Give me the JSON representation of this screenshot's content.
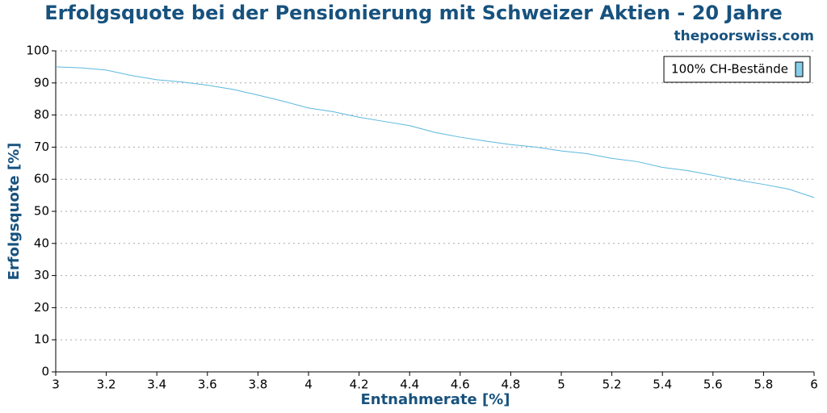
{
  "chart_data": {
    "type": "line",
    "title": "Erfolgsquote bei der Pensionierung mit Schweizer Aktien - 20 Jahre",
    "subtitle": "thepoorswiss.com",
    "x_label": "Entnahmerate [%]",
    "y_label": "Erfolgsquote [%]",
    "x": [
      3,
      3.1,
      3.2,
      3.3,
      3.4,
      3.5,
      3.6,
      3.7,
      3.8,
      3.9,
      4,
      4.1,
      4.2,
      4.3,
      4.4,
      4.5,
      4.6,
      4.7,
      4.8,
      4.9,
      5,
      5.1,
      5.2,
      5.3,
      5.4,
      5.5,
      5.6,
      5.7,
      5.8,
      5.9,
      6
    ],
    "series": [
      {
        "name": "100% CH-Bestände",
        "color": "#5bb8dd",
        "values": [
          95,
          94.7,
          94,
          92.3,
          91,
          90.3,
          89.3,
          88,
          86.2,
          84.3,
          82.2,
          81,
          79.3,
          78,
          76.7,
          74.6,
          73.1,
          71.9,
          70.8,
          70,
          68.8,
          68,
          66.5,
          65.5,
          63.7,
          62.7,
          61.2,
          59.7,
          58.4,
          56.9,
          54.3
        ]
      }
    ],
    "legend_swatch_color": "#87ceeb",
    "xlim": [
      3,
      6
    ],
    "xticks": [
      3,
      3.2,
      3.4,
      3.6,
      3.8,
      4,
      4.2,
      4.4,
      4.6,
      4.8,
      5,
      5.2,
      5.4,
      5.6,
      5.8,
      6
    ],
    "ylim": [
      0,
      100
    ],
    "yticks": [
      0,
      10,
      20,
      30,
      40,
      50,
      60,
      70,
      80,
      90,
      100
    ],
    "grid": true,
    "legend_position": "top-right"
  }
}
